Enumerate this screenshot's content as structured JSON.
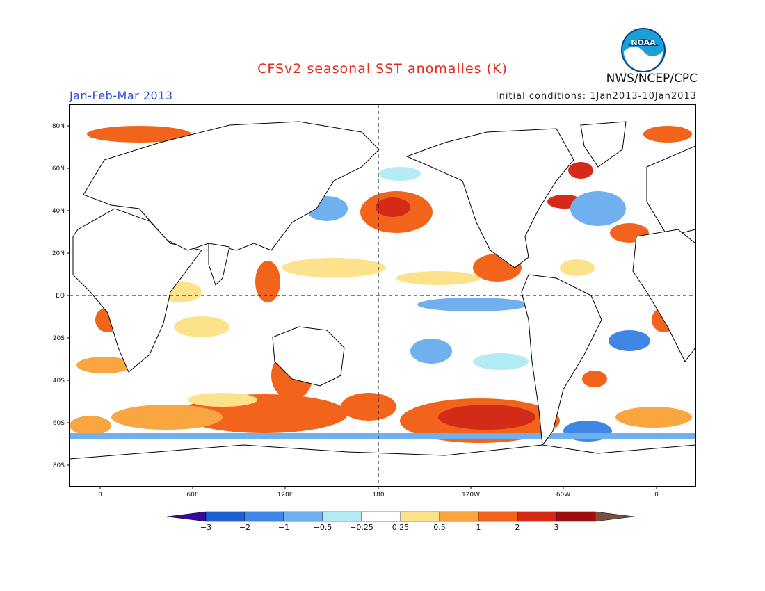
{
  "header": {
    "title": "CFSv2 seasonal SST anomalies (K)",
    "season": "Jan-Feb-Mar 2013",
    "initial_conditions": "Initial conditions: 1Jan2013-10Jan2013",
    "agency": "NWS/NCEP/CPC",
    "logo_text": "NOAA"
  },
  "map": {
    "lat_labels": [
      "80N",
      "60N",
      "40N",
      "20N",
      "EQ",
      "20S",
      "40S",
      "60S",
      "80S"
    ],
    "lon_labels": [
      "0",
      "60E",
      "120E",
      "180",
      "120W",
      "60W",
      "0"
    ]
  },
  "colorbar": {
    "labels": [
      "-3",
      "-2",
      "-1",
      "-0.5",
      "-0.25",
      "0.25",
      "0.5",
      "1",
      "2",
      "3"
    ],
    "colors": [
      "#3a0aa0",
      "#1f5fd0",
      "#3f86e6",
      "#70b0ef",
      "#b3ecf5",
      "#ffffff",
      "#fde28c",
      "#f9a640",
      "#f2641c",
      "#d42a18",
      "#9e0e0e",
      "#7a4f3d"
    ]
  },
  "colors": {
    "title": "#e8261c",
    "season": "#2b50d8",
    "land": "#ffffff",
    "coast": "#000000"
  }
}
